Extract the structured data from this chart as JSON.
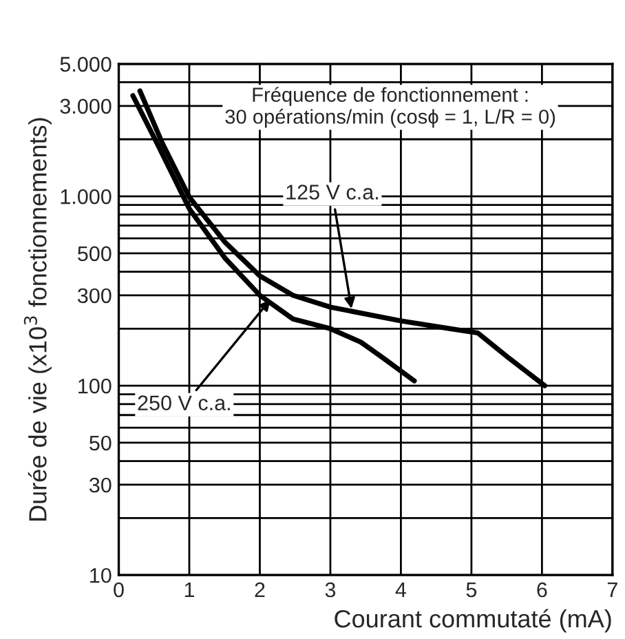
{
  "chart_data": {
    "type": "line",
    "xlabel": "Courant commutaté (mA)",
    "ylabel": "Durée de vie (x10$^{3}$ fonctionnements)",
    "log": "y",
    "xlim": [
      0,
      7
    ],
    "xticks": [
      0,
      1,
      2,
      3,
      4,
      5,
      6,
      7
    ],
    "ylim": [
      10,
      5000
    ],
    "yticks": [
      10,
      {
        "value": 20,
        "label": null
      },
      30,
      {
        "value": 40,
        "label": null
      },
      50,
      {
        "value": 60,
        "label": null
      },
      {
        "value": 70,
        "label": null
      },
      {
        "value": 80,
        "label": null
      },
      {
        "value": 90,
        "label": null
      },
      100,
      {
        "value": 200,
        "label": null
      },
      300,
      {
        "value": 400,
        "label": null
      },
      500,
      {
        "value": 600,
        "label": null
      },
      {
        "value": 700,
        "label": null
      },
      {
        "value": 800,
        "label": null
      },
      {
        "value": 900,
        "label": null
      },
      {
        "value": 1000,
        "label": "1.000"
      },
      {
        "value": 2000,
        "label": null
      },
      {
        "value": 3000,
        "label": "3.000"
      },
      {
        "value": 4000,
        "label": null
      },
      {
        "value": 5000,
        "label": "5.000"
      }
    ],
    "grid": true,
    "legend": false,
    "marker": "none",
    "line_style": "solid",
    "series": [
      {
        "color": "#000000",
        "x": [
          0.3,
          0.62,
          1.0,
          1.51,
          2.0,
          2.47,
          3.0,
          4.0,
          4.7,
          5.09,
          5.53,
          6.04
        ],
        "values": [
          3600,
          1900,
          990,
          570,
          380,
          300,
          260,
          220,
          200,
          190,
          140,
          100
        ]
      },
      {
        "color": "#000000",
        "x": [
          0.2,
          0.56,
          1.0,
          1.51,
          2.0,
          2.47,
          3.0,
          3.43,
          3.75,
          4.19
        ],
        "values": [
          3400,
          1850,
          860,
          470,
          300,
          225,
          200,
          170,
          140,
          106
        ]
      }
    ],
    "annotations": [
      "Fréquence de fonctionnement :\n30 opérations/min (cosϕ = 1, L/R = 0)",
      {
        "text": "125 V c.a.",
        "x": 3.3,
        "y": 255
      },
      {
        "text": "250 V c.a.",
        "x": 2.15,
        "y": 285
      }
    ]
  }
}
